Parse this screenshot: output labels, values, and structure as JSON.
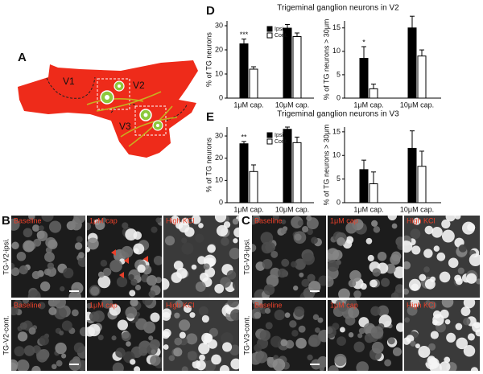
{
  "panels": {
    "a": "A",
    "b": "B",
    "c": "C",
    "d": "D",
    "e": "E"
  },
  "diagram": {
    "regions": [
      "V1",
      "V2",
      "V3"
    ]
  },
  "images": {
    "columns": [
      "Baseline",
      "1μM cap",
      "High KCl"
    ],
    "b_rows": [
      "TG-V2-ipsi.",
      "TG-V2-cont."
    ],
    "c_rows": [
      "TG-V3-ipsi.",
      "TG-V3-cont."
    ]
  },
  "chart_data": [
    {
      "type": "bar",
      "title": "Trigeminal ganglion neurons in V2",
      "ylabel": "% of TG neurons",
      "categories": [
        "1μM cap.",
        "10μM cap."
      ],
      "series": [
        {
          "name": "Ipsi.",
          "color": "#000000",
          "values": [
            22.5,
            29
          ],
          "errors": [
            2,
            1.5
          ]
        },
        {
          "name": "Cont.",
          "color": "#ffffff",
          "values": [
            12,
            25.5
          ],
          "errors": [
            1,
            1.5
          ]
        }
      ],
      "significance": [
        "***",
        null
      ],
      "ylim": [
        0,
        32
      ],
      "yticks": [
        0,
        10,
        20,
        30
      ]
    },
    {
      "type": "bar",
      "ylabel": "% of TG neurons > 30μm",
      "categories": [
        "1μM cap.",
        "10μM cap."
      ],
      "series": [
        {
          "color": "#000000",
          "values": [
            8.5,
            15
          ],
          "errors": [
            2.5,
            2.5
          ]
        },
        {
          "color": "#ffffff",
          "values": [
            2,
            9
          ],
          "errors": [
            1,
            1.3
          ]
        }
      ],
      "significance": [
        "*",
        null
      ],
      "ylim": [
        0,
        16.5
      ],
      "yticks": [
        0,
        5,
        10,
        15
      ]
    },
    {
      "type": "bar",
      "title": "Trigeminal ganglion neurons in V3",
      "ylabel": "% of TG neurons",
      "categories": [
        "1μM cap.",
        "10μM cap."
      ],
      "series": [
        {
          "name": "Ipsi.",
          "color": "#000000",
          "values": [
            26.5,
            33
          ],
          "errors": [
            1,
            1
          ]
        },
        {
          "name": "Cont.",
          "color": "#ffffff",
          "values": [
            14,
            27
          ],
          "errors": [
            3,
            2.5
          ]
        }
      ],
      "significance": [
        "**",
        null
      ],
      "ylim": [
        0,
        34
      ],
      "yticks": [
        0,
        10,
        20,
        30
      ]
    },
    {
      "type": "bar",
      "ylabel": "% of TG neurons > 30μm",
      "categories": [
        "1μM cap.",
        "10μM cap."
      ],
      "series": [
        {
          "color": "#000000",
          "values": [
            7,
            11.5
          ],
          "errors": [
            2,
            3.7
          ]
        },
        {
          "color": "#ffffff",
          "values": [
            4,
            7.7
          ],
          "errors": [
            2.5,
            3.2
          ]
        }
      ],
      "significance": [
        null,
        null
      ],
      "ylim": [
        0,
        16
      ],
      "yticks": [
        0,
        5,
        10,
        15
      ]
    }
  ]
}
